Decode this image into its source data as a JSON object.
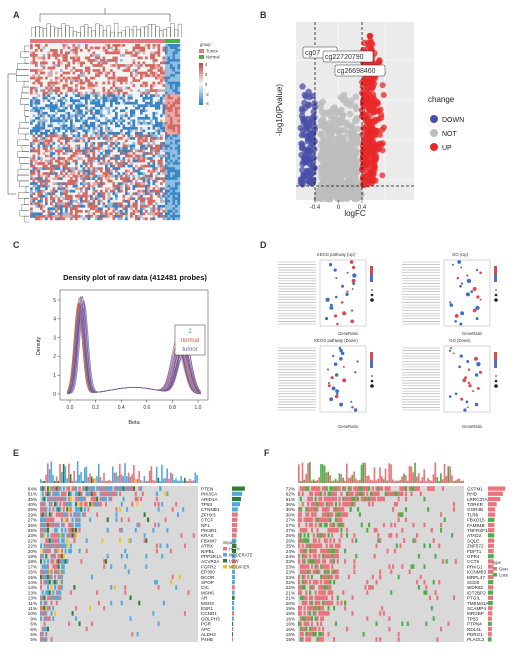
{
  "panels": {
    "A": {
      "label": "A",
      "legend": {
        "title": "group",
        "items": [
          {
            "name": "Tumor",
            "color": "#e8747c"
          },
          {
            "name": "Normal",
            "color": "#4daf4a"
          }
        ]
      },
      "scale_ticks": [
        "4",
        "2",
        "0",
        "-2",
        "-4"
      ]
    },
    "B": {
      "label": "B",
      "chart_data": {
        "type": "scatter",
        "title": "",
        "xlabel": "logFC",
        "ylabel": "-log10(Pvalue)",
        "x_ticks": [
          "-0.4",
          "0",
          "0.4"
        ],
        "legend_title": "change",
        "series": [
          {
            "name": "DOWN",
            "color": "#4a4fa8"
          },
          {
            "name": "NOT",
            "color": "#bdbdbd"
          },
          {
            "name": "UP",
            "color": "#e8282a"
          }
        ],
        "thresholds": {
          "logFC": [
            -0.4,
            0.4
          ]
        },
        "annotations": [
          "cg07",
          "cg22720790",
          "cg26698460"
        ]
      }
    },
    "C": {
      "label": "C",
      "chart_data": {
        "type": "line",
        "title": "Density plot of raw data (412481 probes)",
        "xlabel": "Beta",
        "ylabel": "Density",
        "x_ticks": [
          "0.0",
          "0.2",
          "0.4",
          "0.6",
          "0.8",
          "1.0"
        ],
        "y_ticks": [
          "0",
          "1",
          "2",
          "3",
          "4",
          "5"
        ],
        "legend": {
          "title": "2",
          "items": [
            "normal",
            "tumor"
          ]
        }
      }
    },
    "D": {
      "label": "D",
      "subplots": [
        {
          "title": "KEGG pathway (Up)",
          "xlabel": "GeneRatio"
        },
        {
          "title": "GO (Up)",
          "xlabel": "GeneRatio"
        },
        {
          "title": "KEGG pathway (Down)",
          "xlabel": "GeneRatio"
        },
        {
          "title": "GO (Down)",
          "xlabel": "GeneRatio"
        }
      ]
    },
    "E": {
      "label": "E",
      "legend": {
        "title": "impact",
        "items": [
          {
            "name": "HIGH",
            "color": "#e8747c"
          },
          {
            "name": "MODERATE",
            "color": "#55aadd"
          },
          {
            "name": "LOW",
            "color": "#2e7d32"
          },
          {
            "name": "MODIFIER",
            "color": "#f0c419"
          }
        ]
      },
      "genes": [
        {
          "gene": "PTEN",
          "pct": "64%"
        },
        {
          "gene": "PIK3CA",
          "pct": "51%"
        },
        {
          "gene": "ARID1A",
          "pct": "45%"
        },
        {
          "gene": "TP53",
          "pct": "40%"
        },
        {
          "gene": "CTNNB1",
          "pct": "29%"
        },
        {
          "gene": "ZFHX3",
          "pct": "29%"
        },
        {
          "gene": "CTCF",
          "pct": "27%"
        },
        {
          "gene": "NF1",
          "pct": "26%"
        },
        {
          "gene": "PIK3R1",
          "pct": "25%"
        },
        {
          "gene": "KRAS",
          "pct": "23%"
        },
        {
          "gene": "FBXW7",
          "pct": "22%"
        },
        {
          "gene": "ATRX",
          "pct": "22%"
        },
        {
          "gene": "NIPBL",
          "pct": "20%"
        },
        {
          "gene": "PPP2R1A",
          "pct": "18%"
        },
        {
          "gene": "ACVR2A",
          "pct": "18%"
        },
        {
          "gene": "FGFR2",
          "pct": "17%"
        },
        {
          "gene": "EP300",
          "pct": "15%"
        },
        {
          "gene": "BCOR",
          "pct": "15%"
        },
        {
          "gene": "SPOP",
          "pct": "14%"
        },
        {
          "gene": "CIC",
          "pct": "14%"
        },
        {
          "gene": "MSH6",
          "pct": "13%"
        },
        {
          "gene": "AR",
          "pct": "13%"
        },
        {
          "gene": "MSH3",
          "pct": "11%"
        },
        {
          "gene": "ESR1",
          "pct": "11%"
        },
        {
          "gene": "CCND1",
          "pct": "10%"
        },
        {
          "gene": "GOLPH3",
          "pct": "9%"
        },
        {
          "gene": "PGR",
          "pct": "6%"
        },
        {
          "gene": "APC",
          "pct": "6%"
        },
        {
          "gene": "ALDH2",
          "pct": "5%"
        },
        {
          "gene": "P4HB",
          "pct": "5%"
        }
      ]
    },
    "F": {
      "label": "F",
      "legend": {
        "title": "type",
        "items": [
          {
            "name": "Gain",
            "color": "#e8747c"
          },
          {
            "name": "Loss",
            "color": "#4daf4a"
          }
        ]
      },
      "genes": [
        {
          "gene": "GSTM1",
          "pct": "72%"
        },
        {
          "gene": "RHD",
          "pct": "62%"
        },
        {
          "gene": "LRRC37A",
          "pct": "51%"
        },
        {
          "gene": "TORKR",
          "pct": "36%"
        },
        {
          "gene": "GOR4B",
          "pct": "30%"
        },
        {
          "gene": "TLR8",
          "pct": "30%"
        },
        {
          "gene": "FBXO15",
          "pct": "27%"
        },
        {
          "gene": "FAM84B",
          "pct": "27%"
        },
        {
          "gene": "TNFRSF10B",
          "pct": "27%"
        },
        {
          "gene": "ATAD2",
          "pct": "26%"
        },
        {
          "gene": "SQLE",
          "pct": "26%"
        },
        {
          "gene": "ZNF572",
          "pct": "25%"
        },
        {
          "gene": "FDFT1",
          "pct": "24%"
        },
        {
          "gene": "GPR4",
          "pct": "24%"
        },
        {
          "gene": "CCT5",
          "pct": "23%"
        },
        {
          "gene": "PRKG1",
          "pct": "23%"
        },
        {
          "gene": "KCNMB3",
          "pct": "23%"
        },
        {
          "gene": "MRPL47",
          "pct": "23%"
        },
        {
          "gene": "SCD5",
          "pct": "22%"
        },
        {
          "gene": "WDR82",
          "pct": "22%"
        },
        {
          "gene": "IDT2BP2",
          "pct": "21%"
        },
        {
          "gene": "PTGIL",
          "pct": "21%"
        },
        {
          "gene": "TMEM41A",
          "pct": "20%"
        },
        {
          "gene": "SCAMP4",
          "pct": "19%"
        },
        {
          "gene": "MRGBP",
          "pct": "18%"
        },
        {
          "gene": "TP53",
          "pct": "16%"
        },
        {
          "gene": "PTPN4",
          "pct": "16%"
        },
        {
          "gene": "NDL4L",
          "pct": "16%"
        },
        {
          "gene": "PDRG1",
          "pct": "16%"
        },
        {
          "gene": "PLAGL2",
          "pct": "15%"
        }
      ]
    }
  },
  "colors": {
    "heat_red": "#c8453f",
    "heat_blue": "#2f7dc0",
    "heat_mid": "#f4f4f4",
    "grey_bg": "#d9d9d9"
  }
}
